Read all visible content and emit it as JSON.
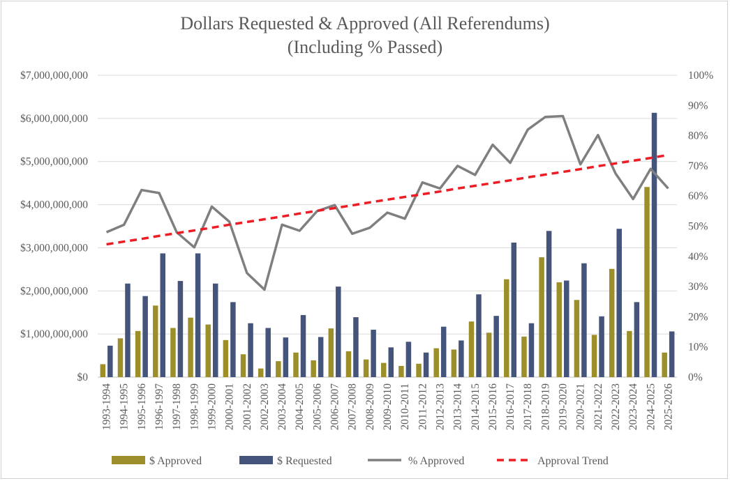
{
  "chart_data": {
    "type": "bar",
    "title": "Dollars Requested & Approved (All Referendums)",
    "subtitle": "(Including % Passed)",
    "categories": [
      "1993-1994",
      "1994-1995",
      "1995-1996",
      "1996-1997",
      "1997-1998",
      "1998-1999",
      "1999-2000",
      "2000-2001",
      "2001-2002",
      "2002-2003",
      "2003-2004",
      "2004-2005",
      "2005-2006",
      "2006-2007",
      "2007-2008",
      "2008-2009",
      "2009-2010",
      "2010-2011",
      "2011-2012",
      "2012-2013",
      "2013-2014",
      "2014-2015",
      "2015-2016",
      "2016-2017",
      "2017-2018",
      "2018-2019",
      "2019-2020",
      "2020-2021",
      "2021-2022",
      "2022-2023",
      "2023-2024",
      "2024-2025",
      "2025-2026"
    ],
    "series": [
      {
        "name": "$ Approved",
        "type": "bar",
        "axis": "left",
        "color": "#9c8f2a",
        "values": [
          300000000,
          900000000,
          1070000000,
          1660000000,
          1140000000,
          1380000000,
          1220000000,
          860000000,
          530000000,
          200000000,
          370000000,
          570000000,
          390000000,
          1130000000,
          600000000,
          410000000,
          330000000,
          260000000,
          310000000,
          670000000,
          640000000,
          1290000000,
          1030000000,
          2270000000,
          940000000,
          2780000000,
          2200000000,
          1790000000,
          980000000,
          2510000000,
          1070000000,
          4410000000,
          570000000
        ]
      },
      {
        "name": "$ Requested",
        "type": "bar",
        "axis": "left",
        "color": "#44547a",
        "values": [
          730000000,
          2170000000,
          1880000000,
          2870000000,
          2230000000,
          2870000000,
          2170000000,
          1740000000,
          1250000000,
          1140000000,
          920000000,
          1440000000,
          930000000,
          2100000000,
          1390000000,
          1100000000,
          690000000,
          820000000,
          570000000,
          1170000000,
          850000000,
          1920000000,
          1420000000,
          3120000000,
          1250000000,
          3390000000,
          2240000000,
          2640000000,
          1410000000,
          3440000000,
          1740000000,
          6130000000,
          1060000000
        ]
      },
      {
        "name": "% Approved",
        "type": "line",
        "axis": "right",
        "color": "#7f7f7f",
        "values": [
          0.48,
          0.505,
          0.62,
          0.61,
          0.48,
          0.43,
          0.565,
          0.515,
          0.345,
          0.29,
          0.505,
          0.485,
          0.55,
          0.57,
          0.475,
          0.495,
          0.545,
          0.525,
          0.645,
          0.625,
          0.7,
          0.67,
          0.77,
          0.71,
          0.82,
          0.862,
          0.865,
          0.705,
          0.802,
          0.675,
          0.59,
          0.69,
          0.625
        ]
      },
      {
        "name": "Approval Trend",
        "type": "trendline",
        "axis": "right",
        "color": "#ee1c24",
        "dashed": true,
        "values": [
          0.44,
          0.449,
          0.458,
          0.468,
          0.477,
          0.486,
          0.495,
          0.505,
          0.514,
          0.523,
          0.532,
          0.542,
          0.551,
          0.56,
          0.569,
          0.579,
          0.588,
          0.597,
          0.606,
          0.615,
          0.625,
          0.634,
          0.643,
          0.652,
          0.662,
          0.671,
          0.68,
          0.689,
          0.699,
          0.708,
          0.717,
          0.726,
          0.736
        ]
      }
    ],
    "y_left": {
      "min": 0,
      "max": 7000000000,
      "ticks": [
        "$0",
        "$1,000,000,000",
        "$2,000,000,000",
        "$3,000,000,000",
        "$4,000,000,000",
        "$5,000,000,000",
        "$6,000,000,000",
        "$7,000,000,000"
      ]
    },
    "y_right": {
      "min": 0,
      "max": 1,
      "ticks": [
        "0%",
        "10%",
        "20%",
        "30%",
        "40%",
        "50%",
        "60%",
        "70%",
        "80%",
        "90%",
        "100%"
      ]
    },
    "grid": true,
    "legend": {
      "position": "bottom",
      "entries": [
        "$ Approved",
        "$ Requested",
        "% Approved",
        "Approval Trend"
      ]
    }
  }
}
